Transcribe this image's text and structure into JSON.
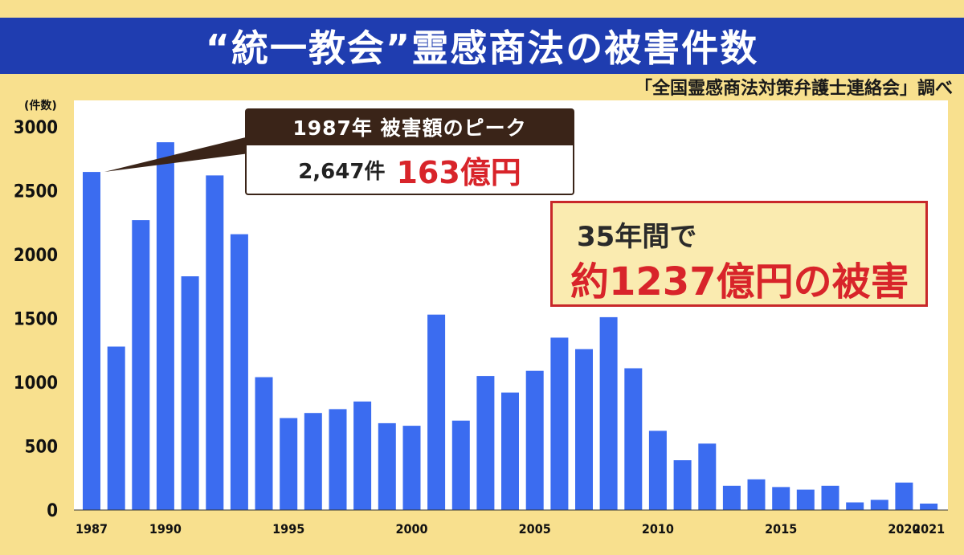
{
  "title": "“統一教会”霊感商法の被害件数",
  "source": "「全国霊感商法対策弁護士連絡会」調べ",
  "colors": {
    "background": "#F8E08E",
    "title_band": "#1F3DB0",
    "bar": "#3B6CF0",
    "accent_red": "#D8242A",
    "callout_dark": "#3A2418"
  },
  "callout_peak": {
    "header": "1987年 被害額のピーク",
    "count": "2,647件",
    "amount": "163億円"
  },
  "callout_total": {
    "line1": "35年間で",
    "line2": "約1237億円の被害"
  },
  "chart_data": {
    "type": "bar",
    "ylabel": "(件数)",
    "ylim": [
      0,
      3000
    ],
    "yticks": [
      0,
      500,
      1000,
      1500,
      2000,
      2500,
      3000
    ],
    "x": [
      1987,
      1988,
      1989,
      1990,
      1991,
      1992,
      1993,
      1994,
      1995,
      1996,
      1997,
      1998,
      1999,
      2000,
      2001,
      2002,
      2003,
      2004,
      2005,
      2006,
      2007,
      2008,
      2009,
      2010,
      2011,
      2012,
      2013,
      2014,
      2015,
      2016,
      2017,
      2018,
      2019,
      2020,
      2021
    ],
    "values": [
      2647,
      1280,
      2270,
      2880,
      1830,
      2620,
      2160,
      1040,
      720,
      760,
      790,
      850,
      680,
      660,
      1530,
      700,
      1050,
      920,
      1090,
      1350,
      1260,
      1510,
      1110,
      620,
      390,
      520,
      190,
      240,
      180,
      160,
      190,
      60,
      80,
      215,
      50
    ],
    "xtick_labels": [
      "1987",
      "1990",
      "1995",
      "2000",
      "2005",
      "2010",
      "2015",
      "2020",
      "2021"
    ],
    "grid": false,
    "legend": "none"
  }
}
